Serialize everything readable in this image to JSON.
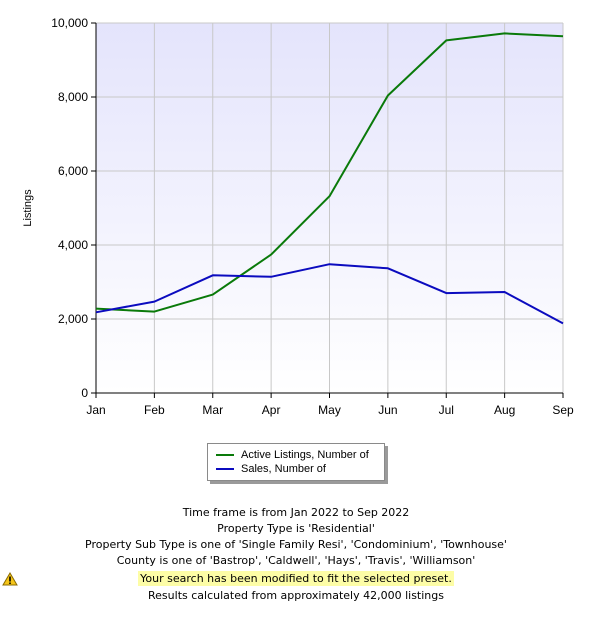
{
  "chart_data": {
    "type": "line",
    "categories": [
      "Jan",
      "Feb",
      "Mar",
      "Apr",
      "May",
      "Jun",
      "Jul",
      "Aug",
      "Sep"
    ],
    "series": [
      {
        "name": "Active Listings, Number of",
        "color": "#0a7a0a",
        "values": [
          2280,
          2200,
          2660,
          3740,
          5320,
          8040,
          9530,
          9720,
          9640
        ]
      },
      {
        "name": "Sales, Number of",
        "color": "#0b0bbf",
        "values": [
          2180,
          2470,
          3180,
          3140,
          3480,
          3370,
          2700,
          2730,
          1880
        ]
      }
    ],
    "ylabel": "Listings",
    "ylim": [
      0,
      10000
    ],
    "yticks": [
      "0",
      "2,000",
      "4,000",
      "6,000",
      "8,000",
      "10,000"
    ],
    "grid": true,
    "legend_position": "bottom"
  },
  "info": {
    "lines": [
      "Time frame is from Jan 2022 to Sep 2022",
      "Property Type is 'Residential'",
      "Property Sub Type is one of 'Single Family Resi', 'Condominium', 'Townhouse'",
      "County is one of 'Bastrop', 'Caldwell', 'Hays', 'Travis', 'Williamson'"
    ],
    "notice": "Your search has been modified to fit the selected preset.",
    "footer": "Results calculated from approximately 42,000 listings",
    "warning_icon": "warning-icon"
  }
}
